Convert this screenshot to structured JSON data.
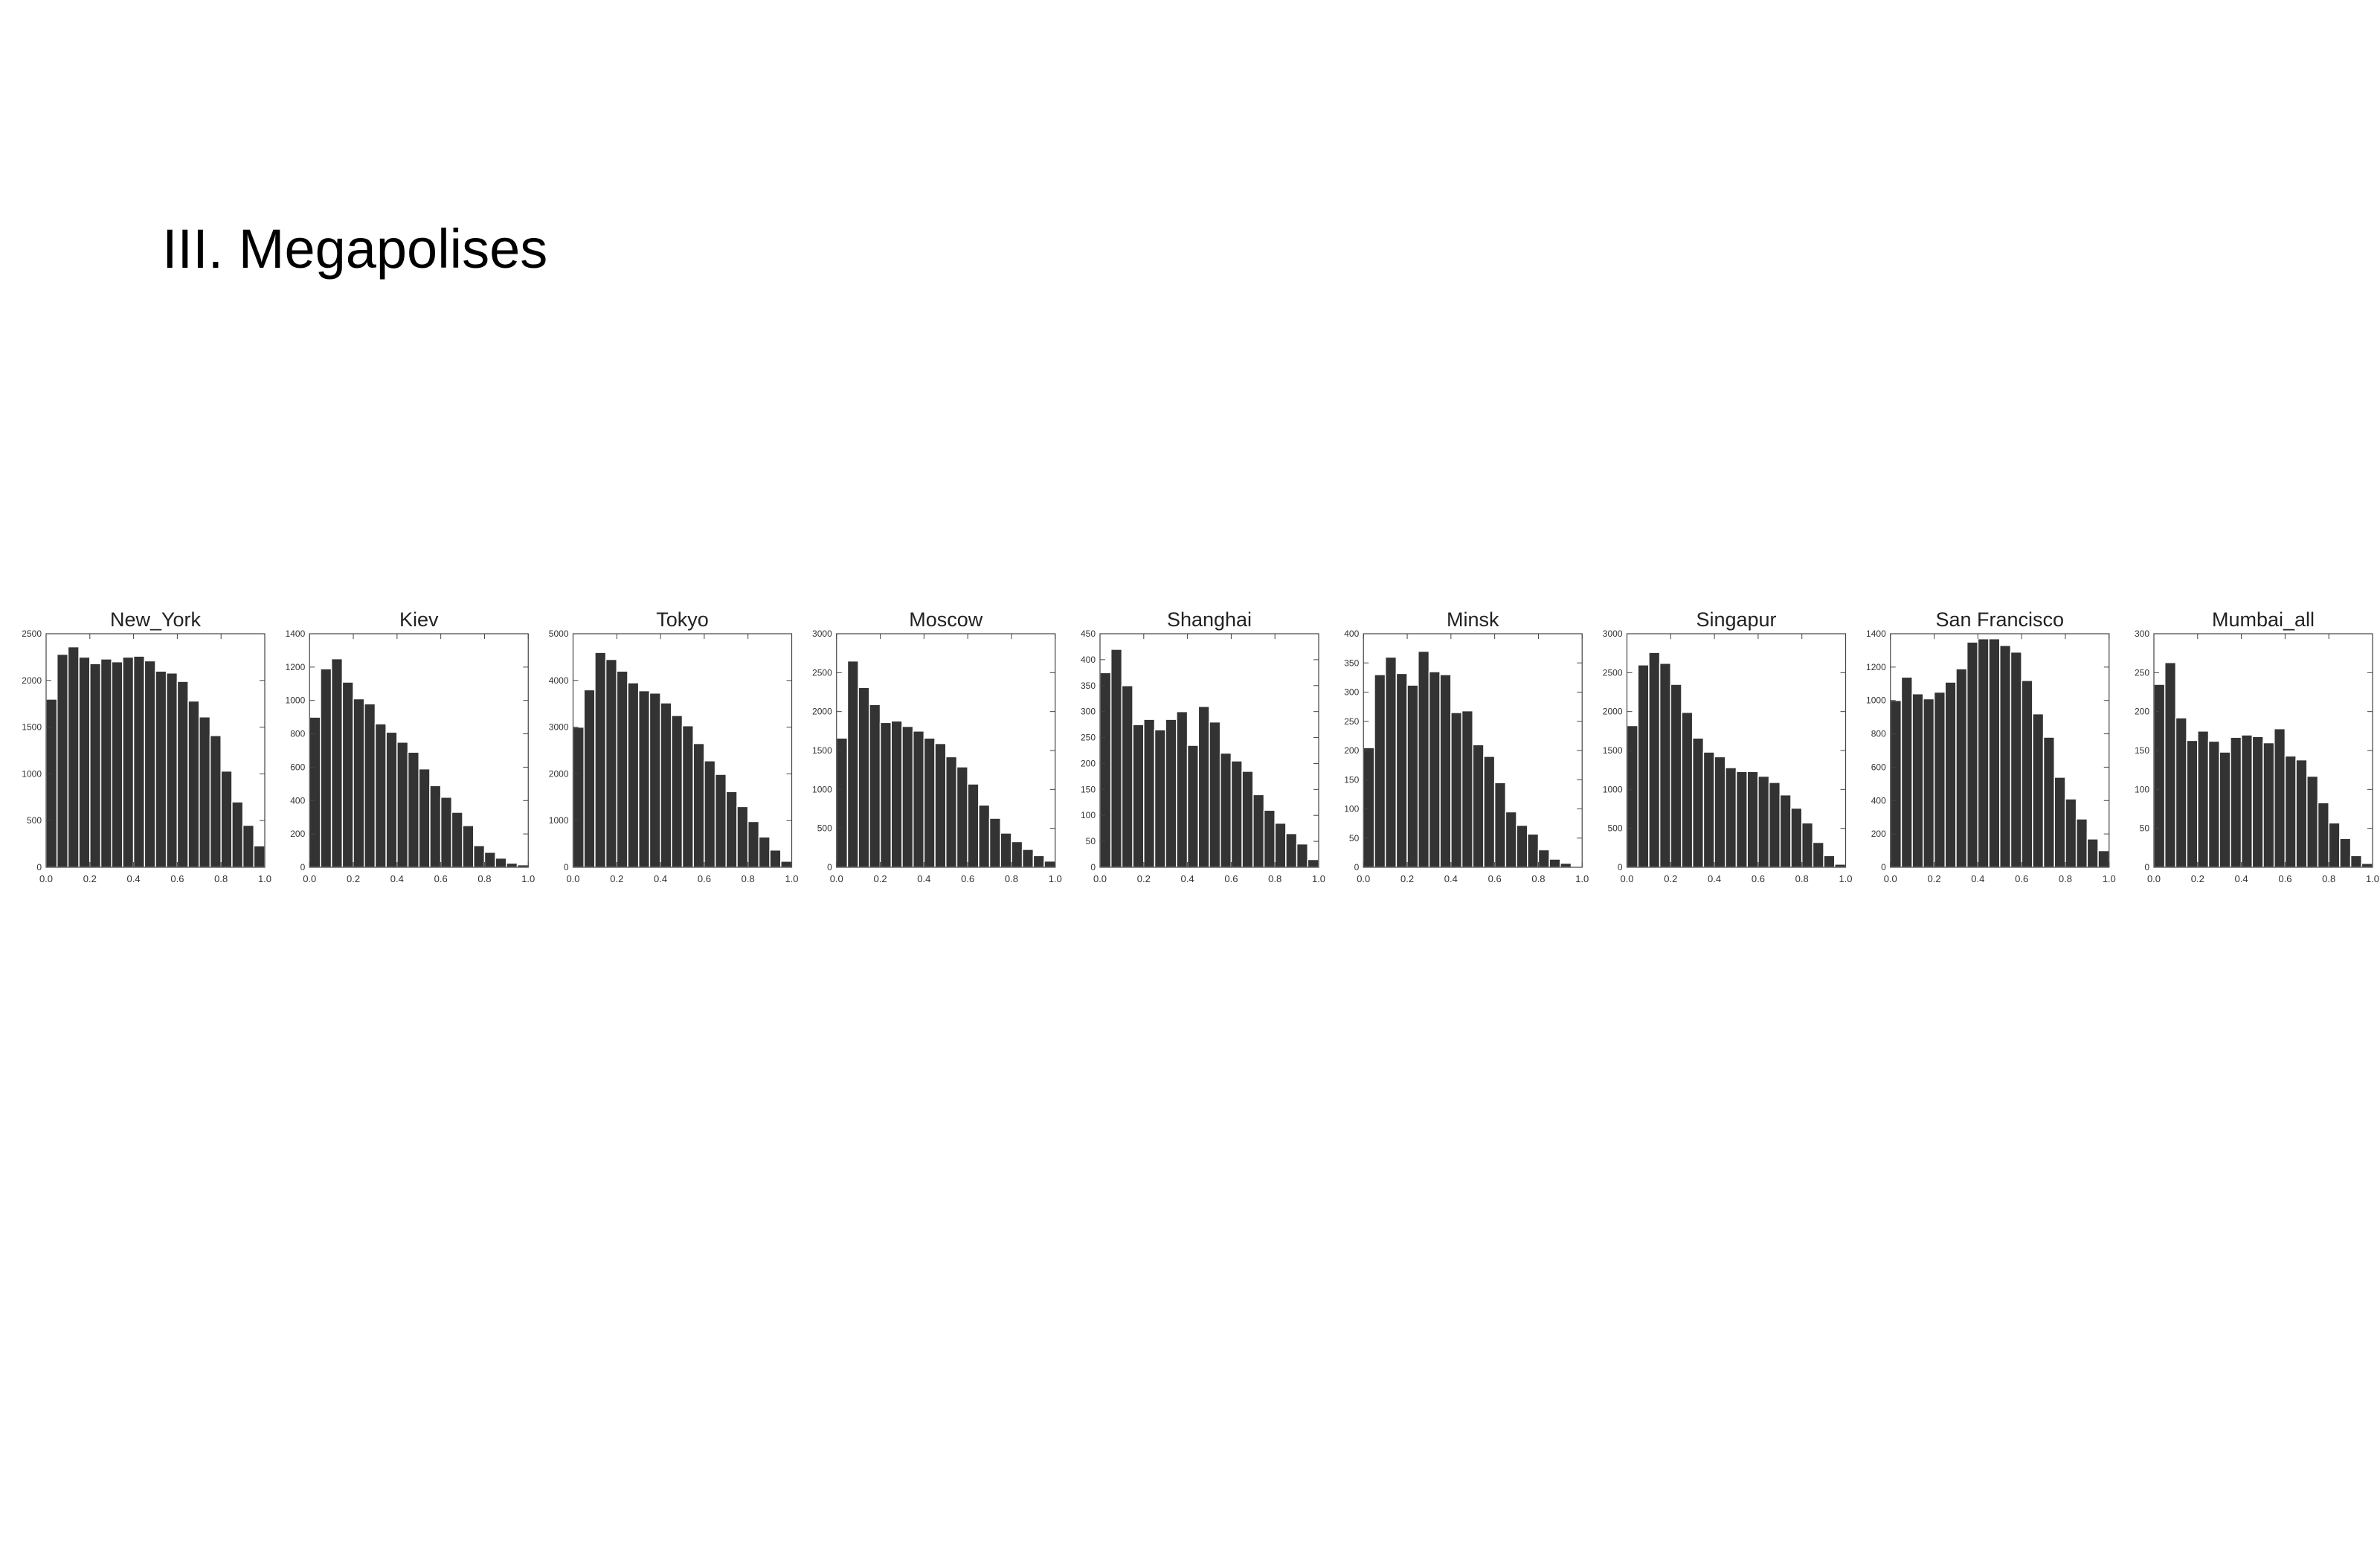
{
  "slide": {
    "title": "III. Megapolises"
  },
  "colors": {
    "bar": "#333333",
    "bar_edge": "#ffffff",
    "axis": "#444444"
  },
  "chart_data": [
    {
      "type": "bar",
      "title": "New_York",
      "xlabel": "",
      "ylabel": "",
      "xlim": [
        0,
        1
      ],
      "ylim": [
        0,
        2500
      ],
      "xticks": [
        "0.0",
        "0.2",
        "0.4",
        "0.6",
        "0.8",
        "1.0"
      ],
      "yticks": [
        "0",
        "500",
        "1000",
        "1500",
        "2000",
        "2500"
      ],
      "bins": 20,
      "values": [
        1800,
        2280,
        2360,
        2250,
        2180,
        2230,
        2200,
        2250,
        2260,
        2210,
        2100,
        2080,
        1990,
        1780,
        1610,
        1410,
        1030,
        700,
        450,
        230
      ]
    },
    {
      "type": "bar",
      "title": "Kiev",
      "xlabel": "",
      "ylabel": "",
      "xlim": [
        0,
        1
      ],
      "ylim": [
        0,
        1400
      ],
      "xticks": [
        "0.0",
        "0.2",
        "0.4",
        "0.6",
        "0.8",
        "1.0"
      ],
      "yticks": [
        "0",
        "200",
        "400",
        "600",
        "800",
        "1000",
        "1200",
        "1400"
      ],
      "bins": 20,
      "values": [
        900,
        1190,
        1250,
        1110,
        1010,
        980,
        860,
        810,
        750,
        690,
        590,
        490,
        420,
        330,
        250,
        130,
        90,
        55,
        25,
        15
      ]
    },
    {
      "type": "bar",
      "title": "Tokyo",
      "xlabel": "",
      "ylabel": "",
      "xlim": [
        0,
        1
      ],
      "ylim": [
        0,
        5000
      ],
      "xticks": [
        "0.0",
        "0.2",
        "0.4",
        "0.6",
        "0.8",
        "1.0"
      ],
      "yticks": [
        "0",
        "1000",
        "2000",
        "3000",
        "4000",
        "5000"
      ],
      "bins": 20,
      "values": [
        3000,
        3800,
        4600,
        4450,
        4200,
        3950,
        3780,
        3730,
        3520,
        3250,
        3030,
        2650,
        2280,
        1990,
        1620,
        1300,
        980,
        650,
        370,
        130
      ]
    },
    {
      "type": "bar",
      "title": "Moscow",
      "xlabel": "",
      "ylabel": "",
      "xlim": [
        0,
        1
      ],
      "ylim": [
        0,
        3000
      ],
      "xticks": [
        "0.0",
        "0.2",
        "0.4",
        "0.6",
        "0.8",
        "1.0"
      ],
      "yticks": [
        "0",
        "500",
        "1000",
        "1500",
        "2000",
        "2500",
        "3000"
      ],
      "bins": 20,
      "values": [
        1660,
        2650,
        2310,
        2090,
        1860,
        1880,
        1810,
        1750,
        1660,
        1590,
        1420,
        1290,
        1070,
        800,
        630,
        440,
        330,
        230,
        150,
        80
      ]
    },
    {
      "type": "bar",
      "title": "Shanghai",
      "xlabel": "",
      "ylabel": "",
      "xlim": [
        0,
        1
      ],
      "ylim": [
        0,
        450
      ],
      "xticks": [
        "0.0",
        "0.2",
        "0.4",
        "0.6",
        "0.8",
        "1.0"
      ],
      "yticks": [
        "0",
        "50",
        "100",
        "150",
        "200",
        "250",
        "300",
        "350",
        "400",
        "450"
      ],
      "bins": 20,
      "values": [
        375,
        420,
        350,
        275,
        285,
        265,
        285,
        300,
        235,
        310,
        280,
        220,
        205,
        185,
        140,
        110,
        85,
        65,
        45,
        15
      ]
    },
    {
      "type": "bar",
      "title": "Minsk",
      "xlabel": "",
      "ylabel": "",
      "xlim": [
        0,
        1
      ],
      "ylim": [
        0,
        400
      ],
      "xticks": [
        "0.0",
        "0.2",
        "0.4",
        "0.6",
        "0.8",
        "1.0"
      ],
      "yticks": [
        "0",
        "50",
        "100",
        "150",
        "200",
        "250",
        "300",
        "350",
        "400"
      ],
      "bins": 20,
      "values": [
        205,
        330,
        360,
        332,
        312,
        370,
        335,
        330,
        265,
        268,
        210,
        190,
        145,
        95,
        72,
        57,
        30,
        14,
        7,
        0
      ]
    },
    {
      "type": "bar",
      "title": "Singapur",
      "xlabel": "",
      "ylabel": "",
      "xlim": [
        0,
        1
      ],
      "ylim": [
        0,
        3000
      ],
      "xticks": [
        "0.0",
        "0.2",
        "0.4",
        "0.6",
        "0.8",
        "1.0"
      ],
      "yticks": [
        "0",
        "500",
        "1000",
        "1500",
        "2000",
        "2500",
        "3000"
      ],
      "bins": 20,
      "values": [
        1820,
        2600,
        2760,
        2620,
        2350,
        1990,
        1660,
        1480,
        1420,
        1280,
        1230,
        1230,
        1170,
        1090,
        930,
        760,
        570,
        320,
        150,
        40
      ]
    },
    {
      "type": "bar",
      "title": "San Francisco",
      "xlabel": "",
      "ylabel": "",
      "xlim": [
        0,
        1
      ],
      "ylim": [
        0,
        1400
      ],
      "xticks": [
        "0.0",
        "0.2",
        "0.4",
        "0.6",
        "0.8",
        "1.0"
      ],
      "yticks": [
        "0",
        "200",
        "400",
        "600",
        "800",
        "1000",
        "1200",
        "1400"
      ],
      "bins": 20,
      "values": [
        1000,
        1140,
        1040,
        1010,
        1050,
        1110,
        1190,
        1350,
        1370,
        1370,
        1330,
        1290,
        1120,
        920,
        780,
        540,
        410,
        290,
        170,
        100
      ]
    },
    {
      "type": "bar",
      "title": "Mumbai_all",
      "xlabel": "",
      "ylabel": "",
      "xlim": [
        0,
        1
      ],
      "ylim": [
        0,
        300
      ],
      "xticks": [
        "0.0",
        "0.2",
        "0.4",
        "0.6",
        "0.8",
        "1.0"
      ],
      "yticks": [
        "0",
        "50",
        "100",
        "150",
        "200",
        "250",
        "300"
      ],
      "bins": 20,
      "values": [
        235,
        263,
        192,
        163,
        175,
        162,
        148,
        167,
        170,
        168,
        160,
        178,
        143,
        138,
        117,
        83,
        57,
        37,
        15,
        5
      ]
    }
  ]
}
